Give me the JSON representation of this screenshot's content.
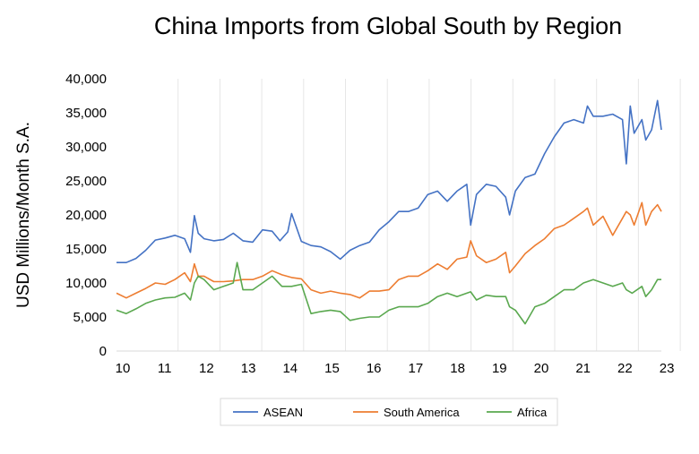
{
  "chart_data": {
    "type": "line",
    "title": "China Imports from Global South by Region",
    "xlabel": "",
    "ylabel": "USD Millions/Month S.A.",
    "x_tick_labels": [
      "10",
      "11",
      "12",
      "13",
      "14",
      "15",
      "16",
      "17",
      "18",
      "19",
      "20",
      "21",
      "22",
      "23"
    ],
    "y_tick_labels": [
      "0",
      "5,000",
      "10,000",
      "15,000",
      "20,000",
      "25,000",
      "30,000",
      "35,000",
      "40,000"
    ],
    "ylim": [
      0,
      40000
    ],
    "xlim": [
      2010.0,
      2023.5
    ],
    "grid": "vertical",
    "legend_position": "bottom",
    "series": [
      {
        "name": "ASEAN",
        "color": "#4472c4",
        "points": [
          [
            2010.0,
            13000
          ],
          [
            2010.25,
            13000
          ],
          [
            2010.5,
            13600
          ],
          [
            2010.75,
            14800
          ],
          [
            2011.0,
            16300
          ],
          [
            2011.25,
            16600
          ],
          [
            2011.5,
            17000
          ],
          [
            2011.75,
            16500
          ],
          [
            2011.9,
            14500
          ],
          [
            2012.0,
            19900
          ],
          [
            2012.1,
            17300
          ],
          [
            2012.25,
            16500
          ],
          [
            2012.5,
            16200
          ],
          [
            2012.75,
            16400
          ],
          [
            2013.0,
            17300
          ],
          [
            2013.25,
            16200
          ],
          [
            2013.5,
            16000
          ],
          [
            2013.75,
            17800
          ],
          [
            2014.0,
            17600
          ],
          [
            2014.2,
            16200
          ],
          [
            2014.4,
            17500
          ],
          [
            2014.5,
            20200
          ],
          [
            2014.75,
            16100
          ],
          [
            2015.0,
            15500
          ],
          [
            2015.25,
            15300
          ],
          [
            2015.5,
            14600
          ],
          [
            2015.75,
            13500
          ],
          [
            2016.0,
            14800
          ],
          [
            2016.25,
            15500
          ],
          [
            2016.5,
            16000
          ],
          [
            2016.75,
            17800
          ],
          [
            2017.0,
            19000
          ],
          [
            2017.25,
            20500
          ],
          [
            2017.5,
            20500
          ],
          [
            2017.75,
            21000
          ],
          [
            2018.0,
            23000
          ],
          [
            2018.25,
            23500
          ],
          [
            2018.5,
            22000
          ],
          [
            2018.75,
            23500
          ],
          [
            2019.0,
            24500
          ],
          [
            2019.1,
            18500
          ],
          [
            2019.25,
            23000
          ],
          [
            2019.5,
            24500
          ],
          [
            2019.75,
            24200
          ],
          [
            2020.0,
            22600
          ],
          [
            2020.1,
            20000
          ],
          [
            2020.25,
            23500
          ],
          [
            2020.5,
            25500
          ],
          [
            2020.75,
            26000
          ],
          [
            2021.0,
            29000
          ],
          [
            2021.25,
            31500
          ],
          [
            2021.5,
            33500
          ],
          [
            2021.75,
            34000
          ],
          [
            2022.0,
            33500
          ],
          [
            2022.1,
            36000
          ],
          [
            2022.25,
            34500
          ],
          [
            2022.5,
            34500
          ],
          [
            2022.75,
            34800
          ],
          [
            2023.0,
            34000
          ],
          [
            2023.1,
            27500
          ],
          [
            2023.2,
            36000
          ],
          [
            2023.3,
            32000
          ],
          [
            2023.5,
            34000
          ],
          [
            2023.6,
            31000
          ],
          [
            2023.75,
            32500
          ],
          [
            2023.9,
            36800
          ],
          [
            2024.0,
            32500
          ]
        ]
      },
      {
        "name": "South America",
        "color": "#ed7d31",
        "points": [
          [
            2010.0,
            8500
          ],
          [
            2010.25,
            7800
          ],
          [
            2010.5,
            8500
          ],
          [
            2010.75,
            9200
          ],
          [
            2011.0,
            10000
          ],
          [
            2011.25,
            9800
          ],
          [
            2011.5,
            10500
          ],
          [
            2011.75,
            11500
          ],
          [
            2011.9,
            10200
          ],
          [
            2012.0,
            12800
          ],
          [
            2012.1,
            11000
          ],
          [
            2012.25,
            11000
          ],
          [
            2012.5,
            10200
          ],
          [
            2012.75,
            10200
          ],
          [
            2013.0,
            10300
          ],
          [
            2013.25,
            10500
          ],
          [
            2013.5,
            10500
          ],
          [
            2013.75,
            11000
          ],
          [
            2014.0,
            11800
          ],
          [
            2014.25,
            11200
          ],
          [
            2014.5,
            10800
          ],
          [
            2014.75,
            10600
          ],
          [
            2015.0,
            9000
          ],
          [
            2015.25,
            8500
          ],
          [
            2015.5,
            8800
          ],
          [
            2015.75,
            8500
          ],
          [
            2016.0,
            8300
          ],
          [
            2016.25,
            7800
          ],
          [
            2016.5,
            8800
          ],
          [
            2016.75,
            8800
          ],
          [
            2017.0,
            9000
          ],
          [
            2017.25,
            10500
          ],
          [
            2017.5,
            11000
          ],
          [
            2017.75,
            11000
          ],
          [
            2018.0,
            11800
          ],
          [
            2018.25,
            12800
          ],
          [
            2018.5,
            12000
          ],
          [
            2018.75,
            13500
          ],
          [
            2019.0,
            13800
          ],
          [
            2019.1,
            16200
          ],
          [
            2019.25,
            14000
          ],
          [
            2019.5,
            13000
          ],
          [
            2019.75,
            13500
          ],
          [
            2020.0,
            14500
          ],
          [
            2020.1,
            11500
          ],
          [
            2020.25,
            12500
          ],
          [
            2020.5,
            14300
          ],
          [
            2020.75,
            15500
          ],
          [
            2021.0,
            16500
          ],
          [
            2021.25,
            18000
          ],
          [
            2021.5,
            18500
          ],
          [
            2021.75,
            19500
          ],
          [
            2022.0,
            20500
          ],
          [
            2022.1,
            21000
          ],
          [
            2022.25,
            18500
          ],
          [
            2022.5,
            19800
          ],
          [
            2022.75,
            17000
          ],
          [
            2023.0,
            19500
          ],
          [
            2023.1,
            20500
          ],
          [
            2023.2,
            20000
          ],
          [
            2023.3,
            18500
          ],
          [
            2023.5,
            21800
          ],
          [
            2023.6,
            18500
          ],
          [
            2023.75,
            20500
          ],
          [
            2023.9,
            21500
          ],
          [
            2024.0,
            20500
          ]
        ]
      },
      {
        "name": "Africa",
        "color": "#5aa84f",
        "points": [
          [
            2010.0,
            6000
          ],
          [
            2010.25,
            5500
          ],
          [
            2010.5,
            6200
          ],
          [
            2010.75,
            7000
          ],
          [
            2011.0,
            7500
          ],
          [
            2011.25,
            7800
          ],
          [
            2011.5,
            7900
          ],
          [
            2011.75,
            8500
          ],
          [
            2011.9,
            7500
          ],
          [
            2012.0,
            10000
          ],
          [
            2012.1,
            11000
          ],
          [
            2012.25,
            10500
          ],
          [
            2012.5,
            9000
          ],
          [
            2012.75,
            9500
          ],
          [
            2013.0,
            10000
          ],
          [
            2013.1,
            13000
          ],
          [
            2013.25,
            9000
          ],
          [
            2013.5,
            9000
          ],
          [
            2013.75,
            10000
          ],
          [
            2014.0,
            11000
          ],
          [
            2014.25,
            9500
          ],
          [
            2014.5,
            9500
          ],
          [
            2014.75,
            9800
          ],
          [
            2015.0,
            5500
          ],
          [
            2015.25,
            5800
          ],
          [
            2015.5,
            6000
          ],
          [
            2015.75,
            5800
          ],
          [
            2016.0,
            4500
          ],
          [
            2016.25,
            4800
          ],
          [
            2016.5,
            5000
          ],
          [
            2016.75,
            5000
          ],
          [
            2017.0,
            6000
          ],
          [
            2017.25,
            6500
          ],
          [
            2017.5,
            6500
          ],
          [
            2017.75,
            6500
          ],
          [
            2018.0,
            7000
          ],
          [
            2018.25,
            8000
          ],
          [
            2018.5,
            8500
          ],
          [
            2018.75,
            8000
          ],
          [
            2019.0,
            8500
          ],
          [
            2019.1,
            8700
          ],
          [
            2019.25,
            7500
          ],
          [
            2019.5,
            8200
          ],
          [
            2019.75,
            8000
          ],
          [
            2020.0,
            8000
          ],
          [
            2020.1,
            6500
          ],
          [
            2020.25,
            6000
          ],
          [
            2020.5,
            4000
          ],
          [
            2020.75,
            6500
          ],
          [
            2021.0,
            7000
          ],
          [
            2021.25,
            8000
          ],
          [
            2021.5,
            9000
          ],
          [
            2021.75,
            9000
          ],
          [
            2022.0,
            10000
          ],
          [
            2022.25,
            10500
          ],
          [
            2022.5,
            10000
          ],
          [
            2022.75,
            9500
          ],
          [
            2023.0,
            10000
          ],
          [
            2023.1,
            9000
          ],
          [
            2023.25,
            8500
          ],
          [
            2023.5,
            9500
          ],
          [
            2023.6,
            8000
          ],
          [
            2023.75,
            9000
          ],
          [
            2023.9,
            10500
          ],
          [
            2024.0,
            10500
          ]
        ]
      }
    ]
  }
}
